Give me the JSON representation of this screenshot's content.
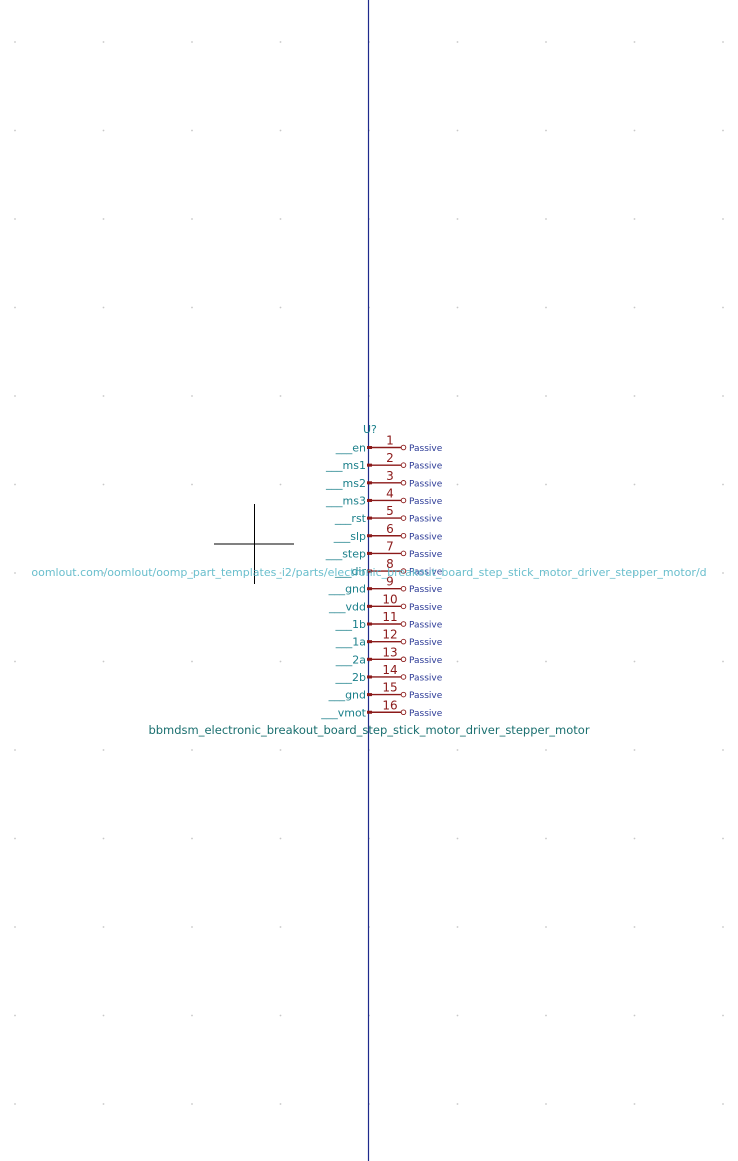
{
  "component": {
    "reference": "U?",
    "value": "bbmdsm_electronic_breakout_board_step_stick_motor_driver_stepper_motor",
    "datasheet": "oomlout.com/oomlout/oomp_part_templates_i2/parts/electronic_breakout_board_step_stick_motor_driver_stepper_motor/d"
  },
  "pins": [
    {
      "number": "1",
      "name": "___en",
      "type": "Passive"
    },
    {
      "number": "2",
      "name": "___ms1",
      "type": "Passive"
    },
    {
      "number": "3",
      "name": "___ms2",
      "type": "Passive"
    },
    {
      "number": "4",
      "name": "___ms3",
      "type": "Passive"
    },
    {
      "number": "5",
      "name": "___rst",
      "type": "Passive"
    },
    {
      "number": "6",
      "name": "___slp",
      "type": "Passive"
    },
    {
      "number": "7",
      "name": "___step",
      "type": "Passive"
    },
    {
      "number": "8",
      "name": "___dir",
      "type": "Passive"
    },
    {
      "number": "9",
      "name": "___gnd",
      "type": "Passive"
    },
    {
      "number": "10",
      "name": "___vdd",
      "type": "Passive"
    },
    {
      "number": "11",
      "name": "___1b",
      "type": "Passive"
    },
    {
      "number": "12",
      "name": "___1a",
      "type": "Passive"
    },
    {
      "number": "13",
      "name": "___2a",
      "type": "Passive"
    },
    {
      "number": "14",
      "name": "___2b",
      "type": "Passive"
    },
    {
      "number": "15",
      "name": "___gnd",
      "type": "Passive"
    },
    {
      "number": "16",
      "name": "___vmot",
      "type": "Passive"
    }
  ],
  "colors": {
    "pin": "#8b1a1a",
    "pin_name": "#1a7f8a",
    "pin_type": "#2b3a96",
    "axis": "#1f2a8c",
    "grid": "#c8c8c8"
  }
}
